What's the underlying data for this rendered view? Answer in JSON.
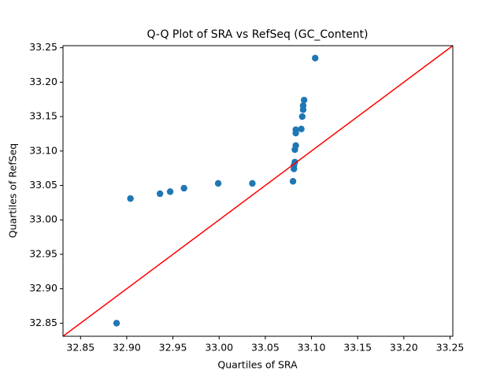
{
  "chart_data": {
    "type": "scatter",
    "title": "Q-Q Plot of SRA vs RefSeq (GC_Content)",
    "x_label": "Quartiles of SRA",
    "y_label": "Quartiles of RefSeq",
    "series": [
      {
        "color": "#1f77b4",
        "x": [
          32.889,
          32.904,
          32.936,
          32.947,
          32.962,
          32.999,
          33.036,
          33.08,
          33.081,
          33.081,
          33.082,
          33.082,
          33.083,
          33.083,
          33.083,
          33.089,
          33.09,
          33.091,
          33.091,
          33.092,
          33.104
        ],
        "values": [
          32.85,
          33.031,
          33.038,
          33.041,
          33.046,
          33.053,
          33.053,
          33.056,
          33.074,
          33.079,
          33.084,
          33.102,
          33.108,
          33.126,
          33.131,
          33.132,
          33.15,
          33.16,
          33.166,
          33.174,
          33.235
        ]
      }
    ],
    "reference_line": {
      "color": "#ff0000",
      "x": [
        32.831,
        33.253
      ],
      "y": [
        32.831,
        33.253
      ]
    },
    "xlim": [
      32.831,
      33.253
    ],
    "ylim": [
      32.831,
      33.253
    ],
    "xticks": [
      32.85,
      {
        "value": 32.9,
        "label": "32.90"
      },
      32.95,
      {
        "value": 33.0,
        "label": "33.00"
      },
      33.05,
      {
        "value": 33.1,
        "label": "33.10"
      },
      33.15,
      {
        "value": 33.2,
        "label": "33.20"
      },
      33.25
    ],
    "yticks": [
      32.85,
      {
        "value": 32.9,
        "label": "32.90"
      },
      32.95,
      {
        "value": 33.0,
        "label": "33.00"
      },
      33.05,
      {
        "value": 33.1,
        "label": "33.10"
      },
      33.15,
      {
        "value": 33.2,
        "label": "33.20"
      },
      33.25
    ]
  }
}
